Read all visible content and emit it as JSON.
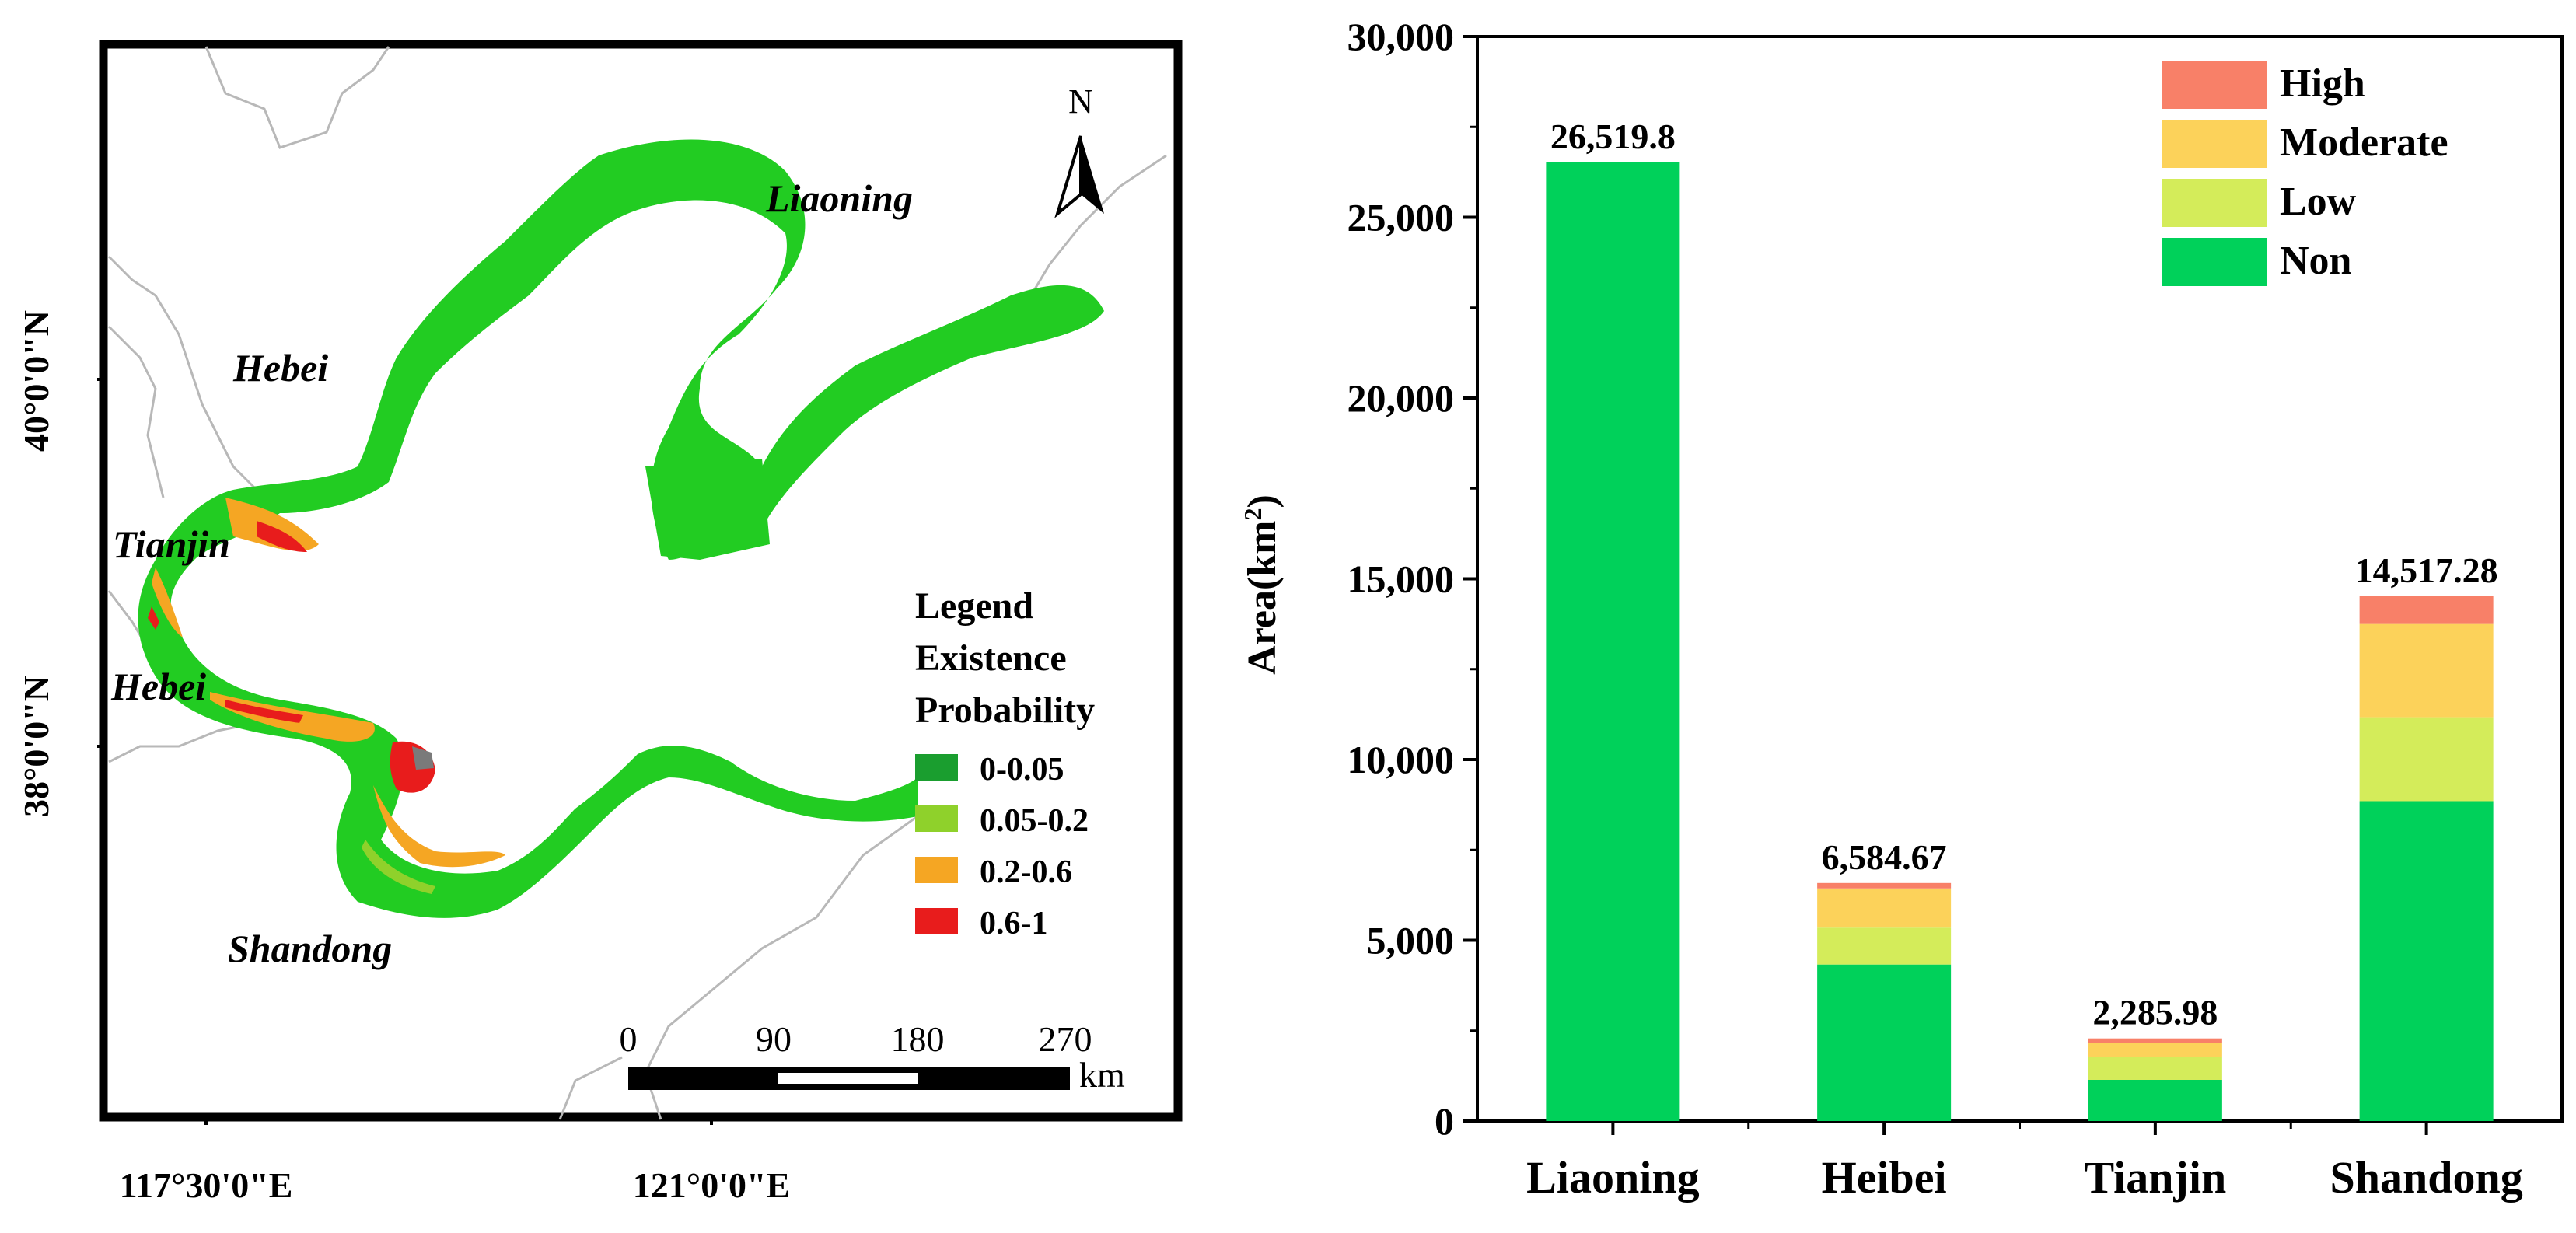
{
  "map": {
    "north_label": "N",
    "province_labels": [
      "Liaoning",
      "Hebei",
      "Tianjin",
      "Hebei",
      "Shandong"
    ],
    "lat_labels": [
      "40°0'0\"N",
      "38°0'0\"N"
    ],
    "lon_labels": [
      "117°30'0\"E",
      "121°0'0\"E"
    ],
    "legend": {
      "title_lines": [
        "Legend",
        "Existence",
        "Probability"
      ],
      "items": [
        {
          "label": "0-0.05",
          "color": "#1a9e2f"
        },
        {
          "label": "0.05-0.2",
          "color": "#8fd12b"
        },
        {
          "label": "0.2-0.6",
          "color": "#f5a623"
        },
        {
          "label": "0.6-1",
          "color": "#e81c1c"
        }
      ]
    },
    "scalebar": {
      "ticks": [
        "0",
        "90",
        "180",
        "270"
      ],
      "unit": "km"
    },
    "colors": {
      "coast_main": "#22cc22",
      "coast_low": "#8fd12b",
      "coast_mid": "#f5a623",
      "coast_high": "#e81c1c",
      "boundary": "#b8b8b8"
    }
  },
  "chart_data": {
    "type": "bar",
    "stacked": true,
    "categories": [
      "Liaoning",
      "Heibei",
      "Tianjin",
      "Shandong"
    ],
    "series": [
      {
        "name": "Non",
        "color": "#00d15a",
        "values": [
          26519.8,
          4330,
          1140,
          8850
        ]
      },
      {
        "name": "Low",
        "color": "#d4ec5a",
        "values": [
          0,
          1020,
          630,
          2320
        ]
      },
      {
        "name": "Moderate",
        "color": "#fcd25a",
        "values": [
          0,
          1085,
          400,
          2580
        ]
      },
      {
        "name": "High",
        "color": "#f88068",
        "values": [
          0,
          149.67,
          115.98,
          767.28
        ]
      }
    ],
    "totals_labels": [
      "26,519.8",
      "6,584.67",
      "2,285.98",
      "14,517.28"
    ],
    "ylabel": "Area(km",
    "ylabel_sup": "2",
    "ylabel_close": ")",
    "ylim": [
      0,
      30000
    ],
    "yticks": [
      0,
      5000,
      10000,
      15000,
      20000,
      25000,
      30000
    ],
    "ytick_labels": [
      "0",
      "5,000",
      "10,000",
      "15,000",
      "20,000",
      "25,000",
      "30,000"
    ],
    "legend_order": [
      "High",
      "Moderate",
      "Low",
      "Non"
    ],
    "legend_position": "top-right",
    "grid": false
  }
}
